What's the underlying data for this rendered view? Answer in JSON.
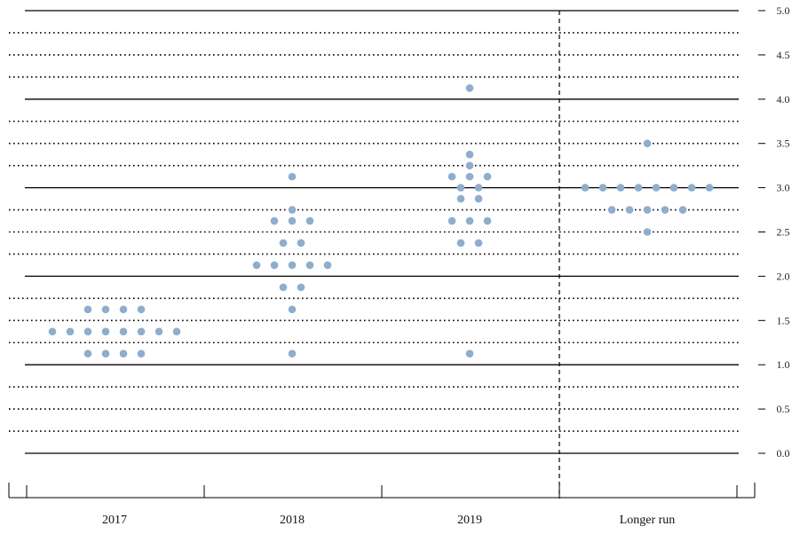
{
  "chart_data": {
    "type": "scatter",
    "categories": [
      "2017",
      "2018",
      "2019",
      "Longer run"
    ],
    "ylim": [
      0,
      5
    ],
    "y_ticks": [
      "0.0",
      "0.5",
      "1.0",
      "1.5",
      "2.0",
      "2.5",
      "3.0",
      "3.5",
      "4.0",
      "4.5",
      "5.0"
    ],
    "grid": "solid at whole percentages, dotted at each 0.25 step",
    "separator": "dashed vertical line before Longer run",
    "dot_color": "#8fadcc",
    "series": [
      {
        "category": "2017",
        "points": [
          {
            "y": 1.125,
            "count": 4
          },
          {
            "y": 1.375,
            "count": 8
          },
          {
            "y": 1.625,
            "count": 4
          }
        ]
      },
      {
        "category": "2018",
        "points": [
          {
            "y": 1.125,
            "count": 1
          },
          {
            "y": 1.625,
            "count": 1
          },
          {
            "y": 1.875,
            "count": 2
          },
          {
            "y": 2.125,
            "count": 5
          },
          {
            "y": 2.375,
            "count": 2
          },
          {
            "y": 2.625,
            "count": 3
          },
          {
            "y": 2.75,
            "count": 1
          },
          {
            "y": 3.125,
            "count": 1
          }
        ]
      },
      {
        "category": "2019",
        "points": [
          {
            "y": 1.125,
            "count": 1
          },
          {
            "y": 2.375,
            "count": 2
          },
          {
            "y": 2.625,
            "count": 3
          },
          {
            "y": 2.875,
            "count": 2
          },
          {
            "y": 3.0,
            "count": 2
          },
          {
            "y": 3.125,
            "count": 3
          },
          {
            "y": 3.25,
            "count": 1
          },
          {
            "y": 3.375,
            "count": 1
          },
          {
            "y": 4.125,
            "count": 1
          }
        ]
      },
      {
        "category": "Longer run",
        "points": [
          {
            "y": 2.5,
            "count": 1
          },
          {
            "y": 2.75,
            "count": 5
          },
          {
            "y": 3.0,
            "count": 8
          },
          {
            "y": 3.5,
            "count": 1
          }
        ]
      }
    ]
  }
}
